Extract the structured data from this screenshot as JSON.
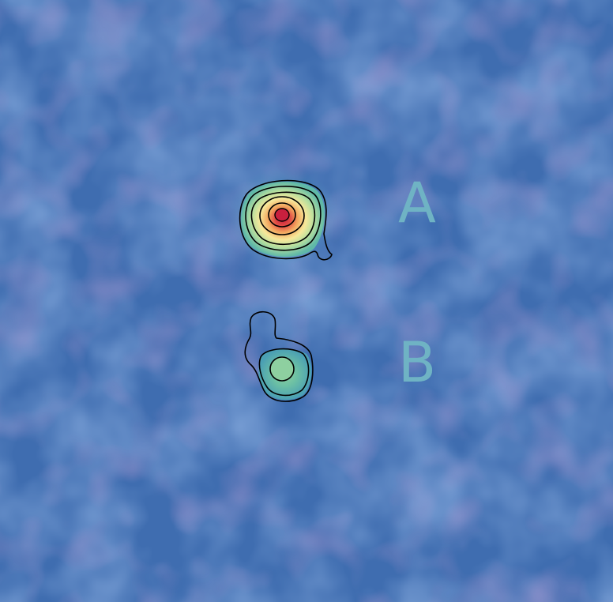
{
  "sources": [
    {
      "id": "A",
      "label": "A"
    },
    {
      "id": "B",
      "label": "B"
    }
  ],
  "colors": {
    "background": "#3f6db0",
    "noise_dark": "#5a4fa0",
    "noise_light": "#3f97c4",
    "label": "#6fb3c4",
    "contour": "#000000",
    "peak_a": "#c9203e",
    "peak_b": "#8ed0a0"
  },
  "colormap": "Spectral_r"
}
